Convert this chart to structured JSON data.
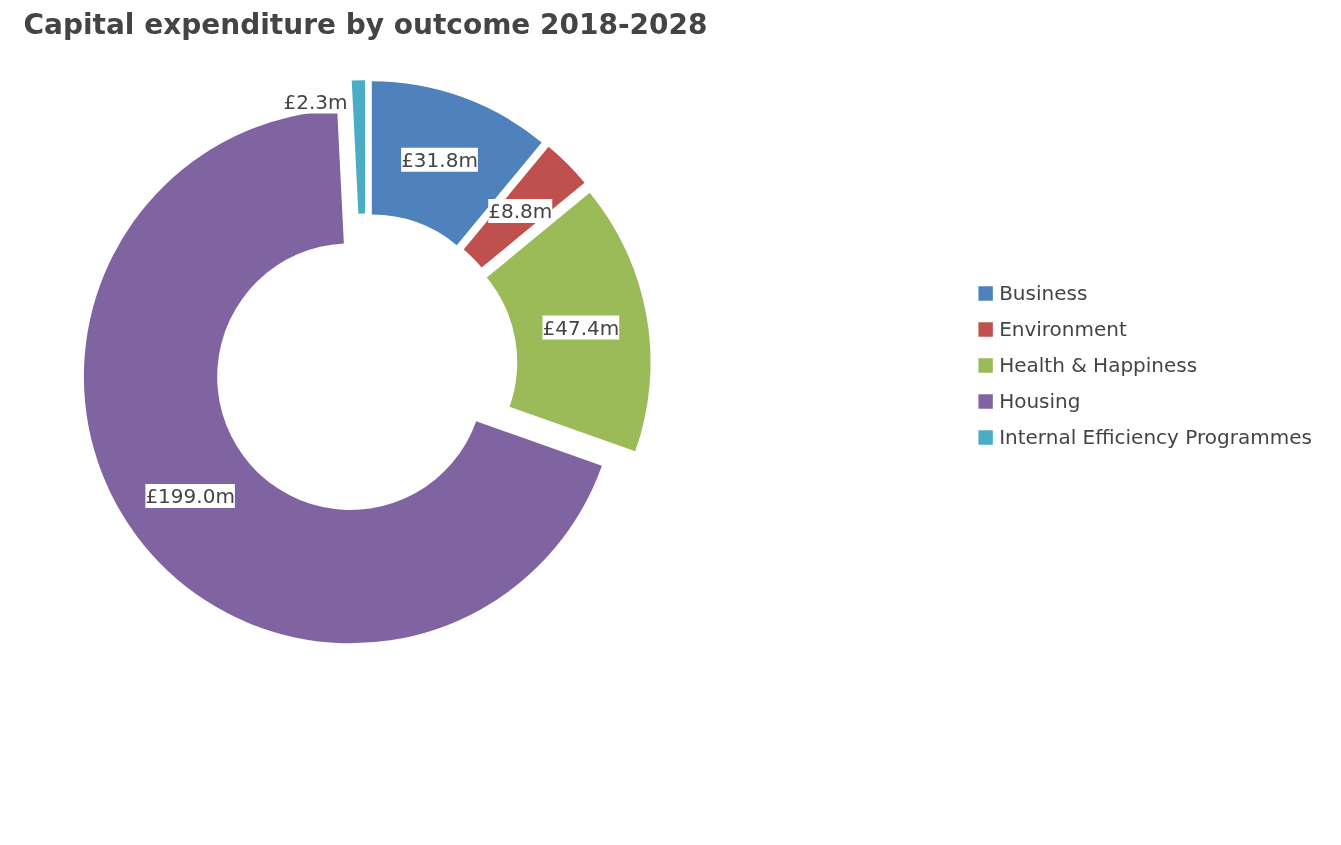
{
  "chart_data": {
    "type": "donut",
    "title": "Capital expenditure by outcome 2018-2028",
    "categories": [
      "Business",
      "Environment",
      "Health & Happiness",
      "Housing",
      "Internal Efficiency Programmes"
    ],
    "values": [
      31.8,
      8.8,
      47.4,
      199.0,
      2.3
    ],
    "colors": [
      "#4f81bd",
      "#c0504d",
      "#9bbb59",
      "#8064a2",
      "#4bacc6"
    ],
    "value_labels": [
      "£31.8m",
      "£8.8m",
      "£47.4m",
      "£199.0m",
      "£2.3m"
    ],
    "legend": "right"
  }
}
